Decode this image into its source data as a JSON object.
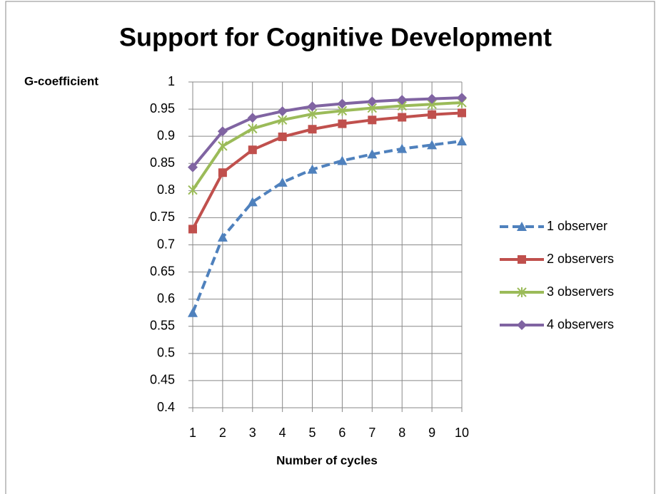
{
  "chart_data": {
    "type": "line",
    "title": "Support for Cognitive Development",
    "y_label": "G-coefficient",
    "x_label": "Number of cycles",
    "x": [
      1,
      2,
      3,
      4,
      5,
      6,
      7,
      8,
      9,
      10
    ],
    "xlim": [
      1,
      10
    ],
    "xticks": [
      1,
      2,
      3,
      4,
      5,
      6,
      7,
      8,
      9,
      10
    ],
    "ylim": [
      0.4,
      1
    ],
    "yticks": [
      0.4,
      0.45,
      0.5,
      0.55,
      0.6,
      0.65,
      0.7,
      0.75,
      0.8,
      0.85,
      0.9,
      0.95,
      1
    ],
    "grid": true,
    "legend": "right",
    "series": [
      {
        "name": "1 observer",
        "color": "#4f81bd",
        "marker": "triangle",
        "line_style": "dashed",
        "values": [
          0.575,
          0.714,
          0.779,
          0.815,
          0.839,
          0.855,
          0.867,
          0.877,
          0.884,
          0.891
        ]
      },
      {
        "name": "2 observers",
        "color": "#c0504d",
        "marker": "square",
        "line_style": "solid",
        "values": [
          0.729,
          0.833,
          0.875,
          0.899,
          0.913,
          0.923,
          0.93,
          0.935,
          0.94,
          0.943
        ]
      },
      {
        "name": "3 observers",
        "color": "#9bbb59",
        "marker": "star",
        "line_style": "solid",
        "values": [
          0.801,
          0.882,
          0.914,
          0.93,
          0.941,
          0.947,
          0.952,
          0.956,
          0.959,
          0.962
        ]
      },
      {
        "name": "4 observers",
        "color": "#8064a2",
        "marker": "diamond",
        "line_style": "solid",
        "values": [
          0.843,
          0.909,
          0.934,
          0.946,
          0.955,
          0.96,
          0.964,
          0.967,
          0.969,
          0.971
        ]
      }
    ]
  }
}
